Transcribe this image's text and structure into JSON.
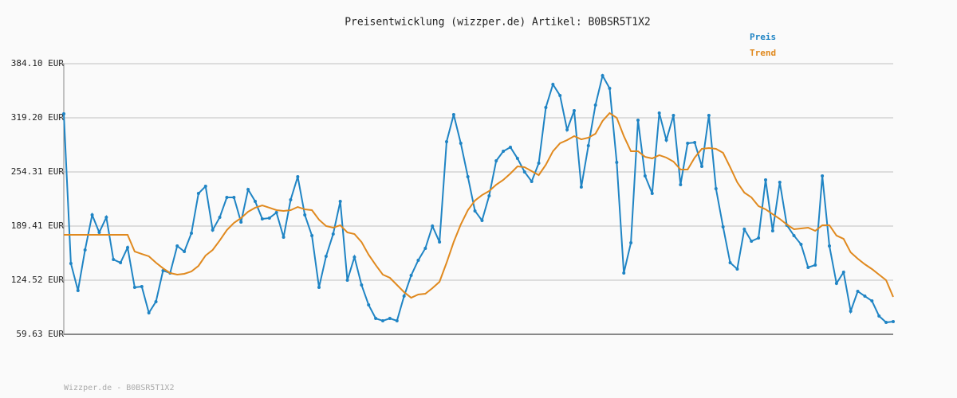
{
  "chart_data": {
    "type": "line",
    "title": "Preisentwicklung (wizzper.de) Artikel: B0BSR5T1X2",
    "footer": "Wizzper.de - B0BSR5T1X2",
    "legend": "top-right",
    "grid": true,
    "ylim": [
      59.63,
      384.1
    ],
    "yticks": [
      {
        "value": 59.63,
        "label": "59.63 EUR"
      },
      {
        "value": 124.52,
        "label": "124.52 EUR"
      },
      {
        "value": 189.41,
        "label": "189.41 EUR"
      },
      {
        "value": 254.31,
        "label": "254.31 EUR"
      },
      {
        "value": 319.2,
        "label": "319.20 EUR"
      },
      {
        "value": 384.1,
        "label": "384.10 EUR"
      }
    ],
    "series": [
      {
        "name": "Preis",
        "color": "#1f84c4",
        "markers": true,
        "values": [
          324.0,
          144.6,
          112.1,
          160.8,
          202.8,
          181.8,
          199.9,
          149.3,
          145.5,
          163.7,
          115.9,
          116.9,
          85.4,
          98.8,
          136.0,
          133.1,
          165.6,
          158.9,
          180.8,
          228.5,
          237.1,
          184.6,
          199.9,
          223.8,
          223.8,
          194.2,
          233.3,
          219.0,
          198.0,
          199.0,
          205.6,
          176.1,
          220.9,
          248.6,
          202.8,
          178.0,
          115.9,
          153.2,
          179.9,
          219.0,
          124.5,
          152.2,
          118.8,
          94.9,
          78.7,
          75.9,
          78.7,
          75.9,
          105.4,
          130.3,
          148.4,
          162.7,
          189.4,
          170.3,
          290.6,
          323.0,
          288.7,
          248.6,
          207.6,
          196.1,
          225.7,
          267.7,
          279.1,
          283.9,
          270.5,
          254.3,
          242.9,
          264.8,
          331.6,
          359.3,
          345.9,
          304.9,
          327.8,
          236.2,
          285.8,
          334.5,
          369.8,
          354.5,
          265.8,
          133.1,
          169.4,
          316.3,
          249.5,
          228.5,
          324.9,
          292.5,
          322.1,
          239.0,
          288.7,
          289.6,
          261.0,
          322.1,
          234.3,
          188.5,
          145.5,
          137.9,
          185.6,
          171.3,
          175.1,
          244.8,
          183.7,
          241.9,
          190.4,
          178.0,
          167.5,
          139.8,
          142.7,
          249.5,
          165.6,
          120.7,
          134.1,
          87.3,
          111.2,
          105.4,
          99.7,
          81.6,
          73.9,
          74.9
        ]
      },
      {
        "name": "Trend",
        "color": "#e0891e",
        "markers": false,
        "values": [
          178.9,
          178.9,
          178.9,
          178.9,
          178.9,
          178.9,
          178.9,
          178.9,
          178.9,
          178.9,
          158.9,
          156.0,
          153.2,
          145.5,
          138.8,
          133.1,
          131.2,
          132.2,
          135.0,
          141.7,
          154.1,
          160.8,
          172.2,
          184.6,
          193.2,
          199.0,
          206.6,
          211.4,
          214.2,
          211.4,
          208.5,
          207.6,
          208.5,
          212.3,
          209.5,
          208.5,
          197.1,
          189.4,
          187.5,
          190.4,
          181.8,
          179.9,
          170.3,
          155.1,
          142.7,
          131.2,
          127.4,
          118.8,
          110.2,
          103.5,
          107.4,
          108.3,
          115.0,
          122.6,
          145.5,
          170.3,
          191.3,
          208.5,
          220.0,
          226.6,
          231.4,
          239.0,
          244.8,
          252.4,
          261.0,
          260.0,
          255.3,
          250.5,
          262.9,
          279.1,
          288.7,
          292.5,
          297.3,
          293.4,
          295.4,
          300.1,
          315.4,
          324.9,
          319.2,
          297.3,
          279.1,
          279.1,
          272.4,
          270.5,
          274.4,
          271.5,
          266.7,
          257.2,
          257.2,
          271.5,
          282.0,
          282.9,
          282.0,
          277.2,
          260.0,
          241.9,
          229.5,
          223.8,
          213.3,
          209.5,
          203.7,
          198.0,
          191.3,
          185.6,
          186.6,
          187.5,
          183.7,
          190.4,
          190.4,
          178.0,
          174.1,
          157.9,
          150.3,
          143.6,
          137.9,
          131.2,
          124.5,
          104.5
        ]
      }
    ]
  }
}
